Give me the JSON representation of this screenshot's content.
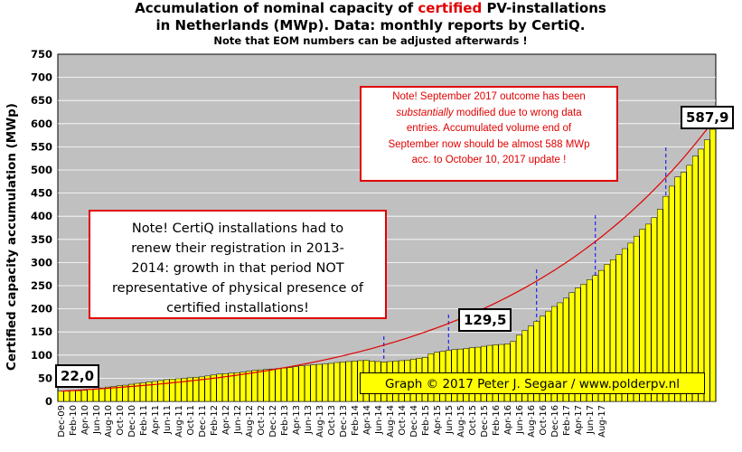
{
  "title": {
    "line1_pre": "Accumulation  of nominal capacity of ",
    "line1_highlight": "certified",
    "line1_post": " PV-installations",
    "line2": "in Netherlands (MWp). Data: monthly  reports by CertiQ.",
    "line3": "Note that EOM numbers can be adjusted afterwards  !"
  },
  "note_red": {
    "line1": "Note! September 2017 outcome has been",
    "line2_italic": "substantially",
    "line2_rest": " modified due to wrong data",
    "line3": "entries. Accumulated volume end of",
    "line4": "September now should be almost 588 MWp",
    "line5": "acc. to October 10, 2017 update !"
  },
  "note_black": {
    "line1": "Note! CertiQ installations had to",
    "line2": "renew their registration in 2013-",
    "line3": "2014:  growth in that period NOT",
    "line4": "representative of physical presence of",
    "line5": "certified installations!"
  },
  "credit": "Graph © 2017 Peter J. Segaar / www.polderpv.nl",
  "colors": {
    "bar": "#ffff00",
    "plot_bg": "#c0c0c0",
    "trend": "#e00000",
    "marker": "#0000ff",
    "highlight": "#e00000"
  },
  "chart_data": {
    "type": "bar",
    "ylabel": "Certified capacity accumulation (MWp)",
    "ylim": [
      0,
      750
    ],
    "yticks": [
      0,
      50,
      100,
      150,
      200,
      250,
      300,
      350,
      400,
      450,
      500,
      550,
      600,
      650,
      700,
      750
    ],
    "grid": true,
    "xtick_labels": [
      "Dec-09",
      "Feb-10",
      "Apr-10",
      "Jun-10",
      "Aug-10",
      "Oct-10",
      "Dec-10",
      "Feb-11",
      "Apr-11",
      "Jun-11",
      "Aug-11",
      "Oct-11",
      "Dec-11",
      "Feb-12",
      "Apr-12",
      "Jun-12",
      "Aug-12",
      "Oct-12",
      "Dec-12",
      "Feb-13",
      "Apr-13",
      "Jun-13",
      "Aug-13",
      "Oct-13",
      "Dec-13",
      "Feb-14",
      "Apr-14",
      "Jun-14",
      "Aug-14",
      "Oct-14",
      "Dec-14",
      "Feb-15",
      "Apr-15",
      "Jun-15",
      "Aug-15",
      "Oct-15",
      "Dec-15",
      "Feb-16",
      "Apr-16",
      "Jun-16",
      "Aug-16",
      "Oct-16",
      "Dec-16",
      "Feb-17",
      "Apr-17",
      "Jun-17",
      "Aug-17"
    ],
    "values": [
      22,
      22,
      23,
      23,
      24,
      26,
      27,
      29,
      31,
      32,
      34,
      35,
      37,
      39,
      40,
      42,
      43,
      45,
      47,
      48,
      49,
      50,
      51,
      52,
      53,
      55,
      57,
      59,
      60,
      61,
      62,
      63,
      65,
      67,
      68,
      69,
      70,
      71,
      72,
      73,
      75,
      77,
      78,
      79,
      80,
      81,
      82,
      84,
      85,
      86,
      87,
      88,
      89,
      87,
      86,
      85,
      86,
      87,
      88,
      89,
      91,
      93,
      95,
      103,
      106,
      108,
      110,
      112,
      113,
      114,
      116,
      117,
      119,
      121,
      122,
      123,
      124,
      129.5,
      143,
      153,
      163,
      173,
      184,
      195,
      205,
      213,
      223,
      235,
      245,
      253,
      263,
      272,
      283,
      296,
      306,
      317,
      330,
      342,
      357,
      372,
      383,
      397,
      415,
      443,
      465,
      485,
      495,
      510,
      530,
      545,
      565,
      587.9
    ],
    "annotations": [
      {
        "label": "22,0",
        "value": 22.0
      },
      {
        "label": "129,5",
        "value": 129.5
      },
      {
        "label": "587,9",
        "value": 587.9
      }
    ]
  }
}
